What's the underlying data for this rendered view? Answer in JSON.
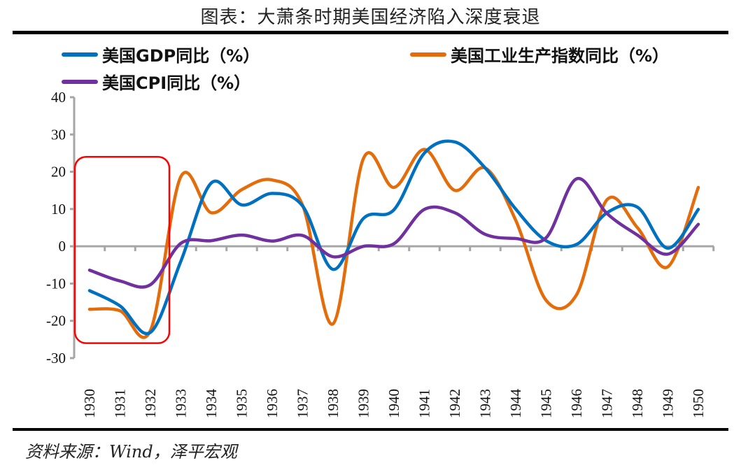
{
  "header": {
    "title": "图表：大萧条时期美国经济陷入深度衰退"
  },
  "footer": {
    "source": "资料来源：Wind，泽平宏观"
  },
  "chart_data": {
    "type": "line",
    "title": "图表：大萧条时期美国经济陷入深度衰退",
    "xlabel": "",
    "ylabel": "",
    "x": [
      "1930",
      "1931",
      "1932",
      "1933",
      "1934",
      "1935",
      "1936",
      "1937",
      "1938",
      "1939",
      "1940",
      "1941",
      "1942",
      "1943",
      "1944",
      "1945",
      "1946",
      "1947",
      "1948",
      "1949",
      "1950"
    ],
    "ylim": [
      -30,
      40
    ],
    "yticks": [
      -30,
      -20,
      -10,
      0,
      10,
      20,
      30,
      40
    ],
    "grid": false,
    "smooth": true,
    "legend_position": "top",
    "series": [
      {
        "name": "美国GDP同比（%）",
        "color": "#0070C0",
        "values": [
          -11.9,
          -16.0,
          -23.1,
          -4.0,
          17.0,
          11.1,
          14.2,
          10.8,
          -6.2,
          7.5,
          9.8,
          25.0,
          28.0,
          21.0,
          10.0,
          1.5,
          0.5,
          9.0,
          10.5,
          -0.5,
          9.9
        ]
      },
      {
        "name": "美国工业生产指数同比（%）",
        "color": "#E46C0A",
        "values": [
          -16.9,
          -17.3,
          -22.6,
          18.7,
          9.0,
          15.2,
          17.8,
          11.0,
          -20.8,
          23.6,
          15.8,
          26.0,
          15.0,
          21.0,
          7.0,
          -14.5,
          -13.0,
          12.5,
          5.0,
          -5.5,
          15.8
        ]
      },
      {
        "name": "美国CPI同比（%）",
        "color": "#7030A0",
        "values": [
          -6.4,
          -9.3,
          -10.3,
          0.8,
          1.5,
          3.0,
          1.4,
          2.9,
          -2.8,
          0.0,
          0.7,
          9.9,
          9.0,
          3.2,
          2.1,
          2.3,
          18.1,
          8.8,
          3.0,
          -2.1,
          5.9
        ]
      }
    ],
    "annotations": [
      {
        "type": "rounded-rect",
        "color": "#FF0000",
        "x_range": [
          "1930",
          "1932"
        ],
        "y_range": [
          -26,
          24
        ],
        "label": ""
      }
    ]
  }
}
